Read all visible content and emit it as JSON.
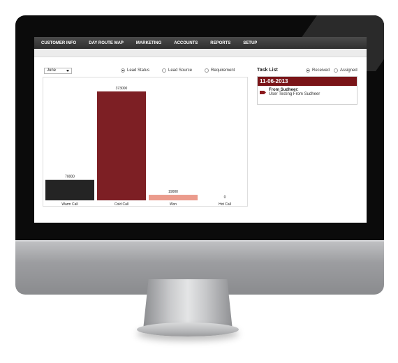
{
  "nav": {
    "items": [
      "CUSTOMER INFO",
      "DAY ROUTE MAP",
      "MARKETING",
      "ACCOUNTS",
      "REPORTS",
      "SETUP"
    ]
  },
  "filters": {
    "month": "June",
    "options": [
      {
        "label": "Lead Status",
        "selected": true
      },
      {
        "label": "Lead Source",
        "selected": false
      },
      {
        "label": "Requirement",
        "selected": false
      }
    ]
  },
  "chart_data": {
    "type": "bar",
    "categories": [
      "Warm Call",
      "Cold Call",
      "Won",
      "Hot Call"
    ],
    "values": [
      70000,
      373000,
      19000,
      0
    ],
    "value_labels": [
      "70000",
      "373000",
      "19000",
      "0"
    ],
    "colors": [
      "#242424",
      "#7d1f24",
      "#eb9b8c",
      "#ffffff"
    ],
    "ylim": [
      0,
      373000
    ],
    "grid": false,
    "title": "",
    "xlabel": "",
    "ylabel": ""
  },
  "tasks": {
    "title": "Task List",
    "views": [
      {
        "label": "Received",
        "selected": true
      },
      {
        "label": "Assigned",
        "selected": false
      }
    ],
    "date": "11-06-2013",
    "items": [
      {
        "from": "From Sudheer:",
        "message": "User Testing From Sudheer"
      }
    ]
  },
  "theme": {
    "accent": "#7a1418",
    "nav_bg": "#3a3a3a"
  }
}
